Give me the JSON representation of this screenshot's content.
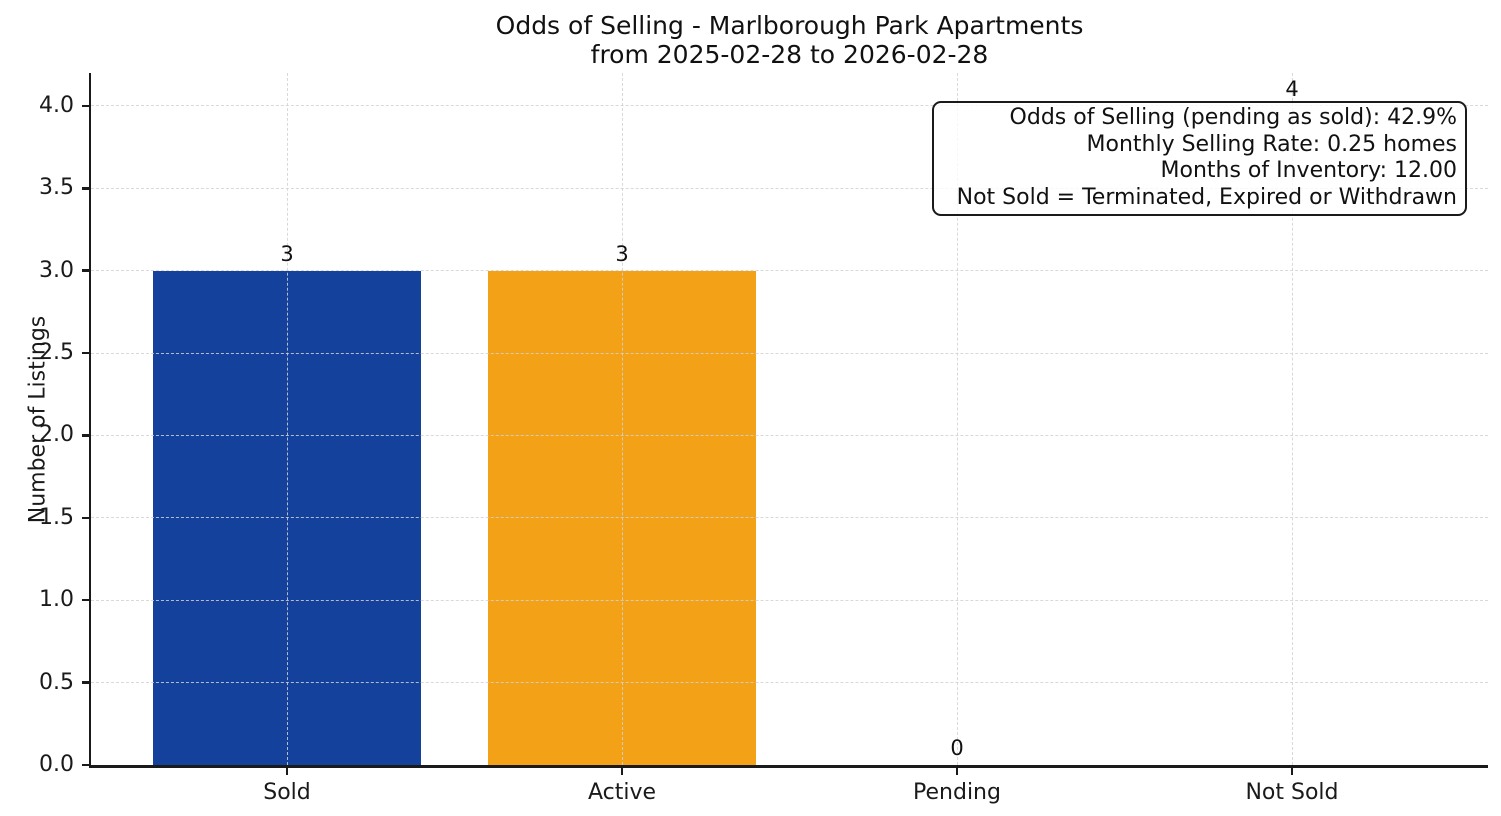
{
  "chart_data": {
    "type": "bar",
    "title": "Odds of Selling - Marlborough Park Apartments",
    "subtitle": "from 2025-02-28 to 2026-02-28",
    "ylabel": "Number of Listings",
    "xlabel": "",
    "categories": [
      "Sold",
      "Active",
      "Pending",
      "Not Sold"
    ],
    "values": [
      3,
      3,
      0,
      4
    ],
    "value_labels": [
      "3",
      "3",
      "0",
      "4"
    ],
    "bar_colors": [
      "#14419c",
      "#f3a117",
      "#c53b2c",
      null
    ],
    "ylim": [
      0,
      4.2
    ],
    "yticks": [
      0.0,
      0.5,
      1.0,
      1.5,
      2.0,
      2.5,
      3.0,
      3.5,
      4.0
    ],
    "ytick_labels": [
      "0.0",
      "0.5",
      "1.0",
      "1.5",
      "2.0",
      "2.5",
      "3.0",
      "3.5",
      "4.0"
    ],
    "grid": "dashed, both axes, drawn above bars",
    "legend": "none",
    "annotation": {
      "lines": [
        "Odds of Selling (pending as sold): 42.9%",
        "Monthly Selling Rate: 0.25 homes",
        "Months of Inventory: 12.00",
        "Not Sold = Terminated, Expired or Withdrawn"
      ]
    },
    "colors": {
      "axis": "#1a1a1a",
      "gridline": "#d2d2d2",
      "background": "#ffffff",
      "annotation_background": "rgba(255,255,255,0.78)"
    }
  }
}
